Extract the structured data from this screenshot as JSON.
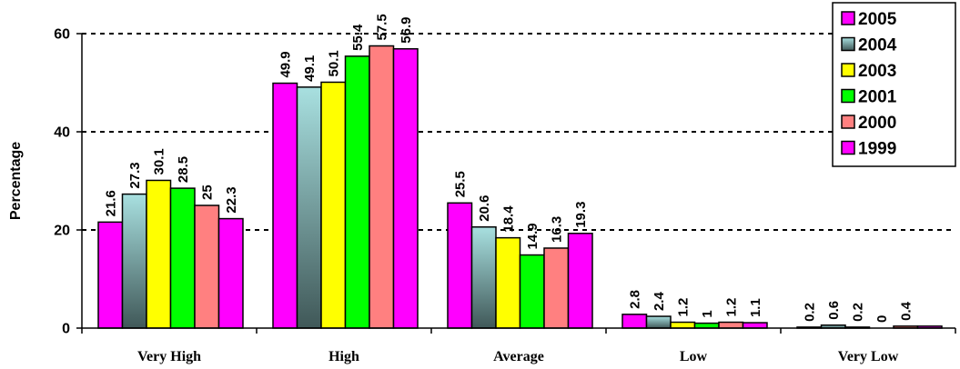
{
  "chart_data": {
    "type": "bar",
    "title": "",
    "xlabel": "",
    "ylabel": "Percentage",
    "ylim": [
      0,
      60
    ],
    "yticks": [
      0,
      20,
      40,
      60
    ],
    "grid": true,
    "legend_position": "top-right",
    "categories": [
      "Very High",
      "High",
      "Average",
      "Low",
      "Very Low"
    ],
    "series": [
      {
        "name": "2005",
        "color": "#ff00ff",
        "values": [
          21.6,
          49.9,
          25.5,
          2.8,
          0.2
        ]
      },
      {
        "name": "2004",
        "color": "#a8e0e0",
        "color_bottom": "#405858",
        "values": [
          27.3,
          49.1,
          20.6,
          2.4,
          0.6
        ]
      },
      {
        "name": "2003",
        "color": "#ffff00",
        "values": [
          30.1,
          50.1,
          18.4,
          1.2,
          0.2
        ]
      },
      {
        "name": "2001",
        "color": "#00ff00",
        "values": [
          28.5,
          55.4,
          14.9,
          1,
          0
        ]
      },
      {
        "name": "2000",
        "color": "#ff8080",
        "values": [
          25,
          57.5,
          16.3,
          1.2,
          0.4
        ]
      },
      {
        "name": "1999",
        "color": "#ff00ff",
        "values": [
          22.3,
          56.9,
          19.3,
          1.1,
          0.4
        ]
      }
    ],
    "data_labels": [
      [
        "21.6",
        "27.3",
        "30.1",
        "28.5",
        "25",
        "22.3"
      ],
      [
        "49.9",
        "49.1",
        "50.1",
        "55.4",
        "57.5",
        "56.9"
      ],
      [
        "25.5",
        "20.6",
        "18.4",
        "14.9",
        "16.3",
        "19.3"
      ],
      [
        "2.8",
        "2.4",
        "1.2",
        "1",
        "1.2",
        "1.1"
      ],
      [
        "0.2",
        "0.6",
        "0.2",
        "0",
        "0.4",
        ""
      ]
    ]
  }
}
